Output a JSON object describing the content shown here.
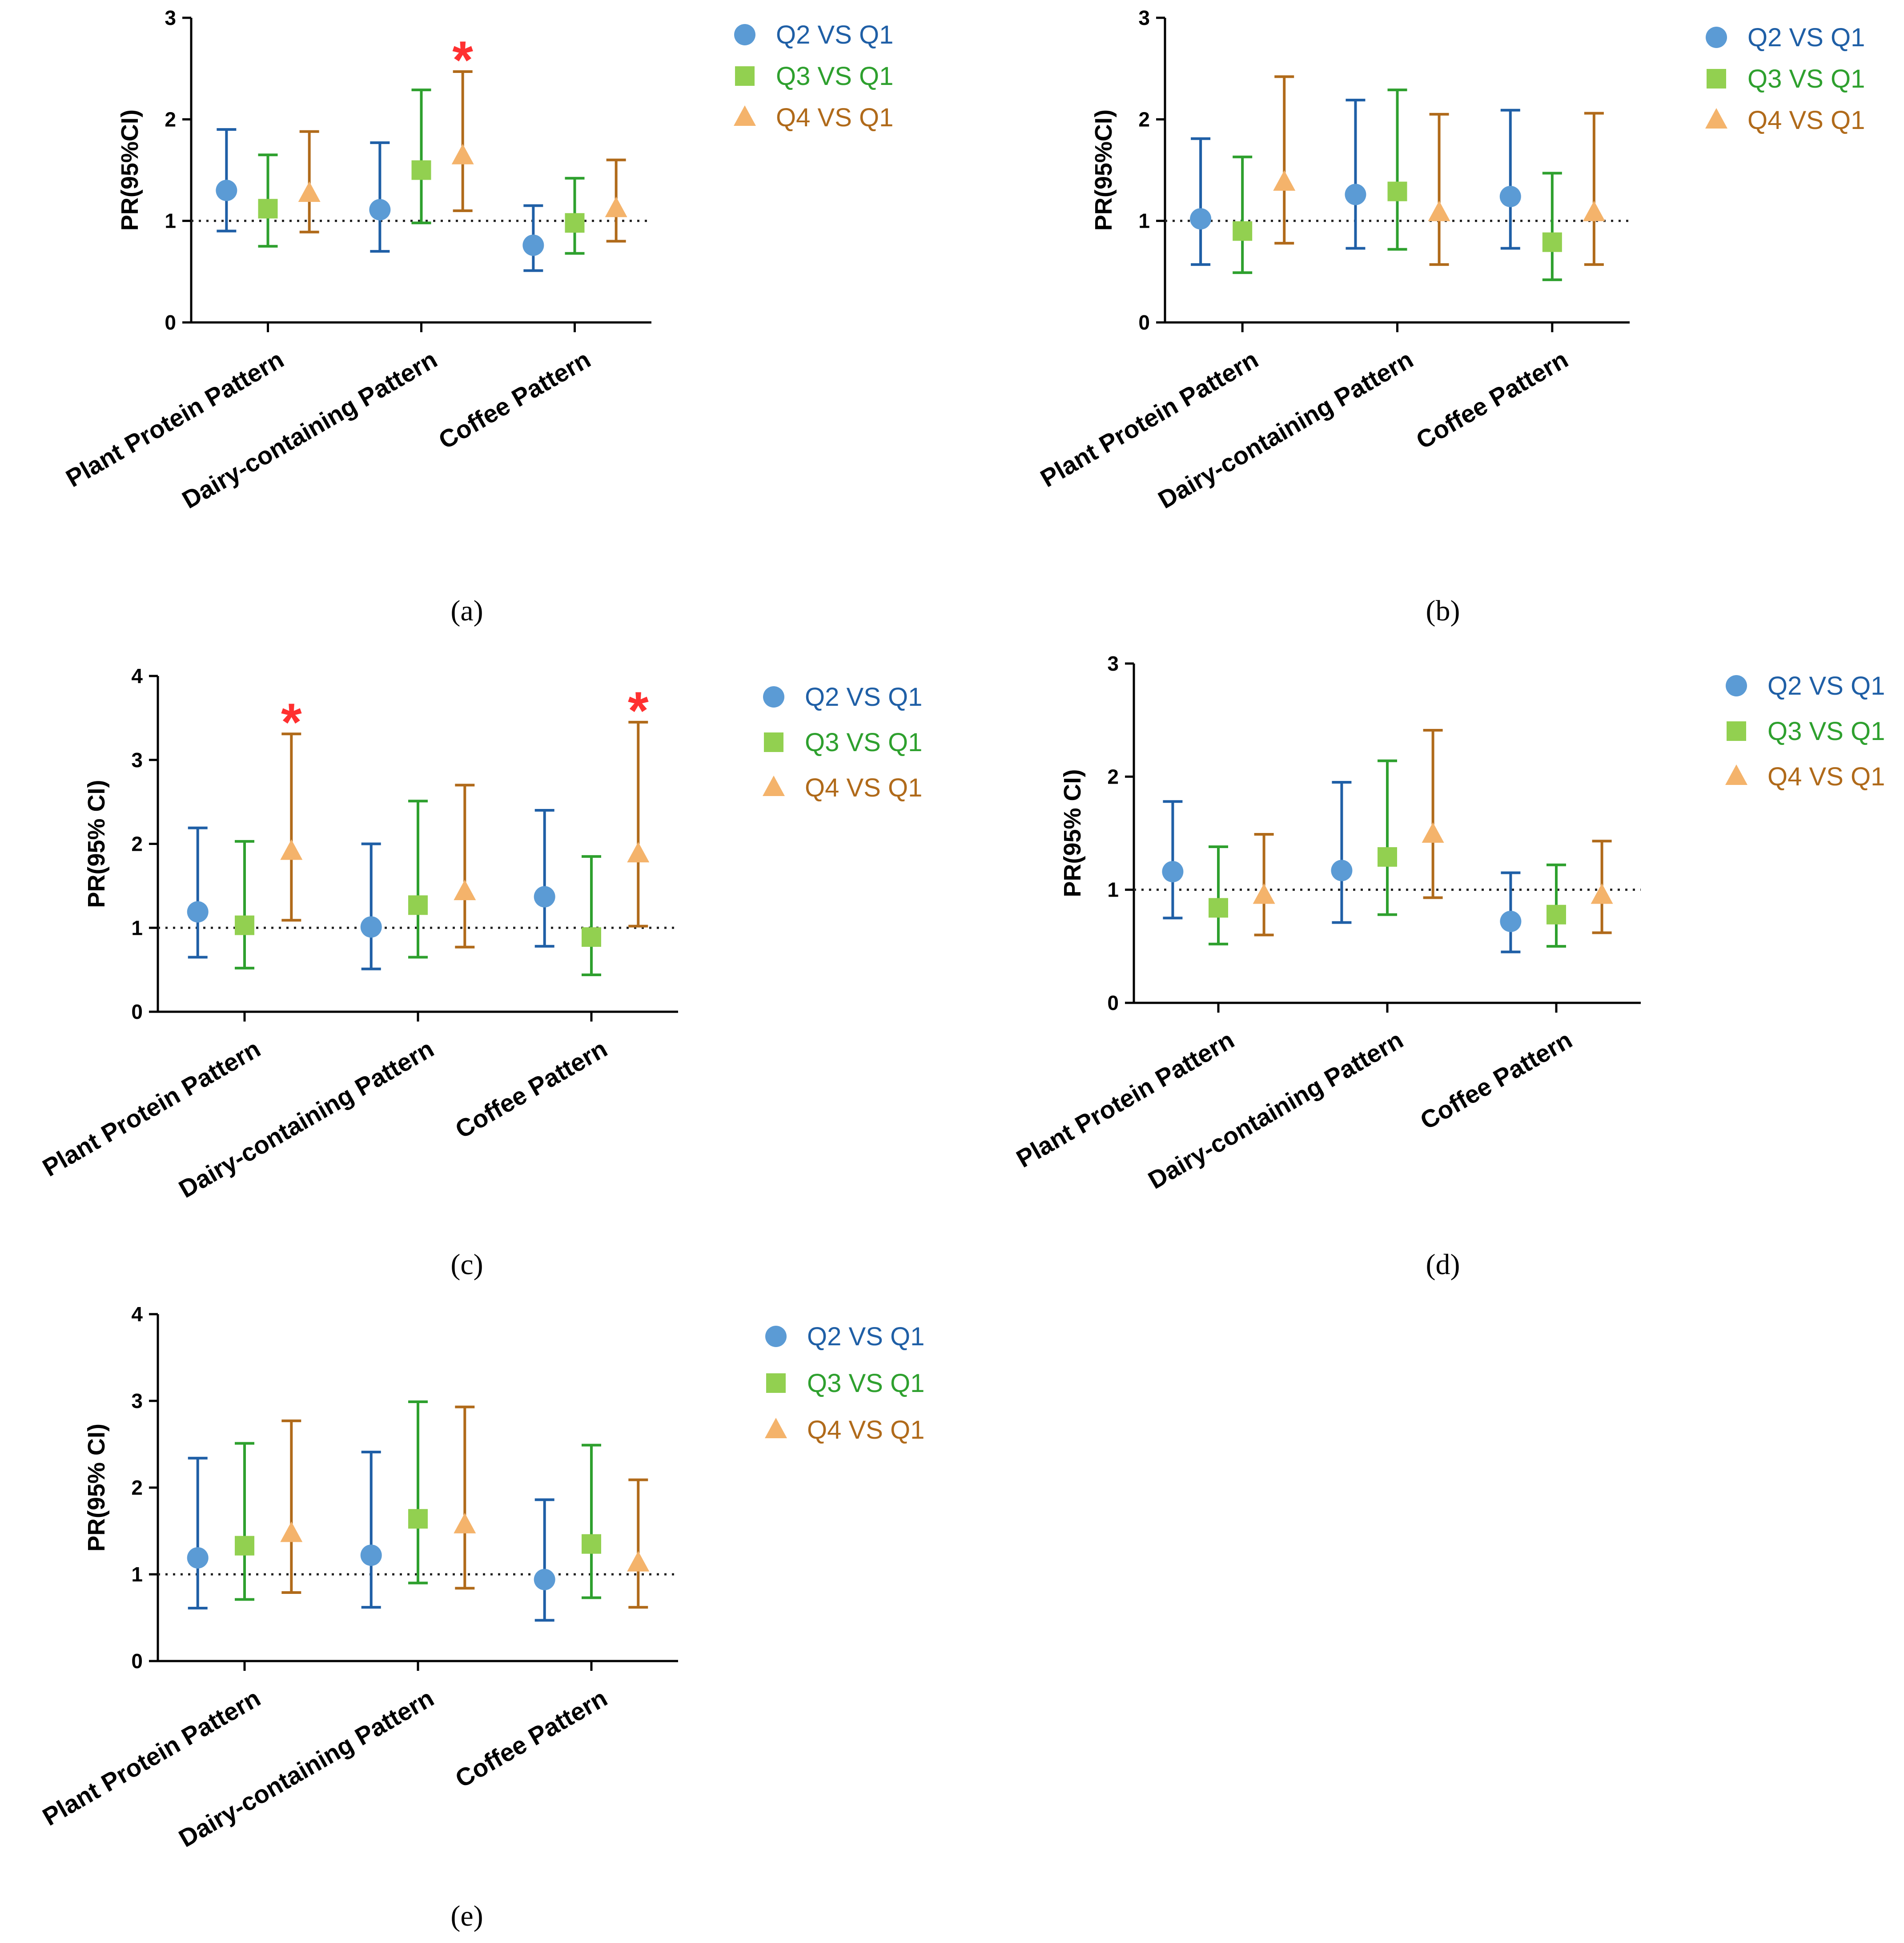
{
  "colors": {
    "Q2": {
      "line": "#1f5fa6",
      "marker": "#5b9bd5",
      "text": "#1f5fa6"
    },
    "Q3": {
      "line": "#2ea02e",
      "marker": "#92d050",
      "text": "#2ea02e"
    },
    "Q4": {
      "line": "#b06a1a",
      "marker": "#f4b36b",
      "text": "#b06a1a"
    },
    "star": "#ff3030"
  },
  "chart_data": [
    {
      "panel": "(a)",
      "type": "scatter",
      "ylabel": "PR(95%CI)",
      "ylim": [
        0,
        3
      ],
      "yticks": [
        0,
        1,
        2,
        3
      ],
      "refline": 1,
      "categories": [
        "Plant Protein Pattern",
        "Dairy-containing Pattern",
        "Coffee Pattern"
      ],
      "series": [
        {
          "name": "Q2 VS Q1",
          "marker": "circle",
          "values": [
            1.3,
            1.11,
            0.76
          ],
          "lower": [
            0.9,
            0.7,
            0.51
          ],
          "upper": [
            1.9,
            1.77,
            1.15
          ]
        },
        {
          "name": "Q3 VS Q1",
          "marker": "square",
          "values": [
            1.12,
            1.5,
            0.98
          ],
          "lower": [
            0.75,
            0.98,
            0.68
          ],
          "upper": [
            1.65,
            2.29,
            1.42
          ]
        },
        {
          "name": "Q4 VS Q1",
          "marker": "triangle",
          "values": [
            1.27,
            1.64,
            1.12
          ],
          "lower": [
            0.89,
            1.1,
            0.8
          ],
          "upper": [
            1.88,
            2.47,
            1.6
          ]
        }
      ],
      "significant": [
        {
          "category": 1,
          "series": 2
        }
      ]
    },
    {
      "panel": "(b)",
      "type": "scatter",
      "ylabel": "PR(95%CI)",
      "ylim": [
        0,
        3
      ],
      "yticks": [
        0,
        1,
        2,
        3
      ],
      "refline": 1,
      "categories": [
        "Plant Protein Pattern",
        "Dairy-containing Pattern",
        "Coffee Pattern"
      ],
      "series": [
        {
          "name": "Q2 VS Q1",
          "marker": "circle",
          "values": [
            1.02,
            1.26,
            1.24
          ],
          "lower": [
            0.57,
            0.73,
            0.73
          ],
          "upper": [
            1.81,
            2.19,
            2.09
          ]
        },
        {
          "name": "Q3 VS Q1",
          "marker": "square",
          "values": [
            0.9,
            1.29,
            0.79
          ],
          "lower": [
            0.49,
            0.72,
            0.42
          ],
          "upper": [
            1.63,
            2.29,
            1.47
          ]
        },
        {
          "name": "Q4 VS Q1",
          "marker": "triangle",
          "values": [
            1.38,
            1.08,
            1.08
          ],
          "lower": [
            0.78,
            0.57,
            0.57
          ],
          "upper": [
            2.42,
            2.05,
            2.06
          ]
        }
      ],
      "significant": []
    },
    {
      "panel": "(c)",
      "type": "scatter",
      "ylabel": "PR(95% CI)",
      "ylim": [
        0,
        4
      ],
      "yticks": [
        0,
        1,
        2,
        3,
        4
      ],
      "refline": 1,
      "categories": [
        "Plant Protein Pattern",
        "Dairy-containing Pattern",
        "Coffee Pattern"
      ],
      "series": [
        {
          "name": "Q2 VS Q1",
          "marker": "circle",
          "values": [
            1.19,
            1.01,
            1.37
          ],
          "lower": [
            0.65,
            0.51,
            0.78
          ],
          "upper": [
            2.19,
            2.0,
            2.4
          ]
        },
        {
          "name": "Q3 VS Q1",
          "marker": "square",
          "values": [
            1.03,
            1.27,
            0.89
          ],
          "lower": [
            0.52,
            0.65,
            0.44
          ],
          "upper": [
            2.03,
            2.51,
            1.85
          ]
        },
        {
          "name": "Q4 VS Q1",
          "marker": "triangle",
          "values": [
            1.91,
            1.43,
            1.88
          ],
          "lower": [
            1.09,
            0.77,
            1.02
          ],
          "upper": [
            3.31,
            2.7,
            3.45
          ]
        }
      ],
      "significant": [
        {
          "category": 0,
          "series": 2
        },
        {
          "category": 2,
          "series": 2
        }
      ]
    },
    {
      "panel": "(d)",
      "type": "scatter",
      "ylabel": "PR(95% CI)",
      "ylim": [
        0,
        3
      ],
      "yticks": [
        0,
        1,
        2,
        3
      ],
      "refline": 1,
      "categories": [
        "Plant Protein Pattern",
        "Dairy-containing Pattern",
        "Coffee Pattern"
      ],
      "series": [
        {
          "name": "Q2 VS Q1",
          "marker": "circle",
          "values": [
            1.16,
            1.17,
            0.72
          ],
          "lower": [
            0.75,
            0.71,
            0.45
          ],
          "upper": [
            1.78,
            1.95,
            1.15
          ]
        },
        {
          "name": "Q3 VS Q1",
          "marker": "square",
          "values": [
            0.84,
            1.29,
            0.78
          ],
          "lower": [
            0.52,
            0.78,
            0.5
          ],
          "upper": [
            1.38,
            2.14,
            1.22
          ]
        },
        {
          "name": "Q4 VS Q1",
          "marker": "triangle",
          "values": [
            0.95,
            1.49,
            0.95
          ],
          "lower": [
            0.6,
            0.93,
            0.62
          ],
          "upper": [
            1.49,
            2.41,
            1.43
          ]
        }
      ],
      "significant": []
    },
    {
      "panel": "(e)",
      "type": "scatter",
      "ylabel": "PR(95% CI)",
      "ylim": [
        0,
        4
      ],
      "yticks": [
        0,
        1,
        2,
        3,
        4
      ],
      "refline": 1,
      "categories": [
        "Plant Protein Pattern",
        "Dairy-containing Pattern",
        "Coffee Pattern"
      ],
      "series": [
        {
          "name": "Q2 VS Q1",
          "marker": "circle",
          "values": [
            1.19,
            1.22,
            0.94
          ],
          "lower": [
            0.61,
            0.62,
            0.47
          ],
          "upper": [
            2.34,
            2.41,
            1.86
          ]
        },
        {
          "name": "Q3 VS Q1",
          "marker": "square",
          "values": [
            1.33,
            1.64,
            1.35
          ],
          "lower": [
            0.71,
            0.9,
            0.73
          ],
          "upper": [
            2.51,
            2.99,
            2.49
          ]
        },
        {
          "name": "Q4 VS Q1",
          "marker": "triangle",
          "values": [
            1.47,
            1.57,
            1.13
          ],
          "lower": [
            0.79,
            0.84,
            0.62
          ],
          "upper": [
            2.77,
            2.93,
            2.09
          ]
        }
      ],
      "significant": []
    }
  ]
}
